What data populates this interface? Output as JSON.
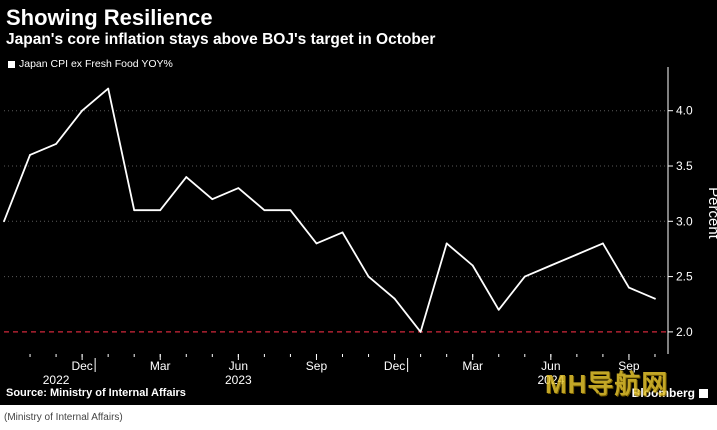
{
  "title": "Showing Resilience",
  "subtitle": "Japan's core inflation stays above BOJ's target in October",
  "source": "Source: Ministry of Internal Affairs",
  "brand": "Bloomberg",
  "footnote": "(Ministry of Internal Affairs)",
  "watermark": "MH导航网",
  "colors": {
    "background": "#000000",
    "line": "#ffffff",
    "target_line": "#d0273a",
    "grid": "#5a5a5a"
  },
  "chart_data": {
    "type": "line",
    "ylabel": "Percent",
    "ylim": [
      1.8,
      4.35
    ],
    "yticks": [
      2.0,
      2.5,
      3.0,
      3.5,
      4.0
    ],
    "ytick_labels": [
      "2.0",
      "2.5",
      "3.0",
      "3.5",
      "4.0"
    ],
    "y_axis_position": "right",
    "grid": "horizontal dotted",
    "legend_position": "top-left",
    "x_tick_labels": [
      "Dec",
      "Mar",
      "Jun",
      "Sep",
      "Dec",
      "Mar",
      "Jun",
      "Sep"
    ],
    "x_tick_dates": [
      "2022-12",
      "2023-03",
      "2023-06",
      "2023-09",
      "2023-12",
      "2024-03",
      "2024-06",
      "2024-09"
    ],
    "year_labels": [
      {
        "label": "2022",
        "date": "2022-11"
      },
      {
        "label": "2023",
        "date": "2023-06"
      },
      {
        "label": "2024",
        "date": "2024-06"
      }
    ],
    "reference_line": {
      "value": 2.0,
      "style": "dashed",
      "color": "#d0273a"
    },
    "series": [
      {
        "name": "Japan CPI ex Fresh Food YOY%",
        "x": [
          "2022-09",
          "2022-10",
          "2022-11",
          "2022-12",
          "2023-01",
          "2023-02",
          "2023-03",
          "2023-04",
          "2023-05",
          "2023-06",
          "2023-07",
          "2023-08",
          "2023-09",
          "2023-10",
          "2023-11",
          "2023-12",
          "2024-01",
          "2024-02",
          "2024-03",
          "2024-04",
          "2024-05",
          "2024-06",
          "2024-07",
          "2024-08",
          "2024-09",
          "2024-10"
        ],
        "values": [
          3.0,
          3.6,
          3.7,
          4.0,
          4.2,
          3.1,
          3.1,
          3.4,
          3.2,
          3.3,
          3.1,
          3.1,
          2.8,
          2.9,
          2.5,
          2.3,
          2.0,
          2.8,
          2.6,
          2.2,
          2.5,
          2.6,
          2.7,
          2.8,
          2.4,
          2.3
        ]
      }
    ]
  }
}
